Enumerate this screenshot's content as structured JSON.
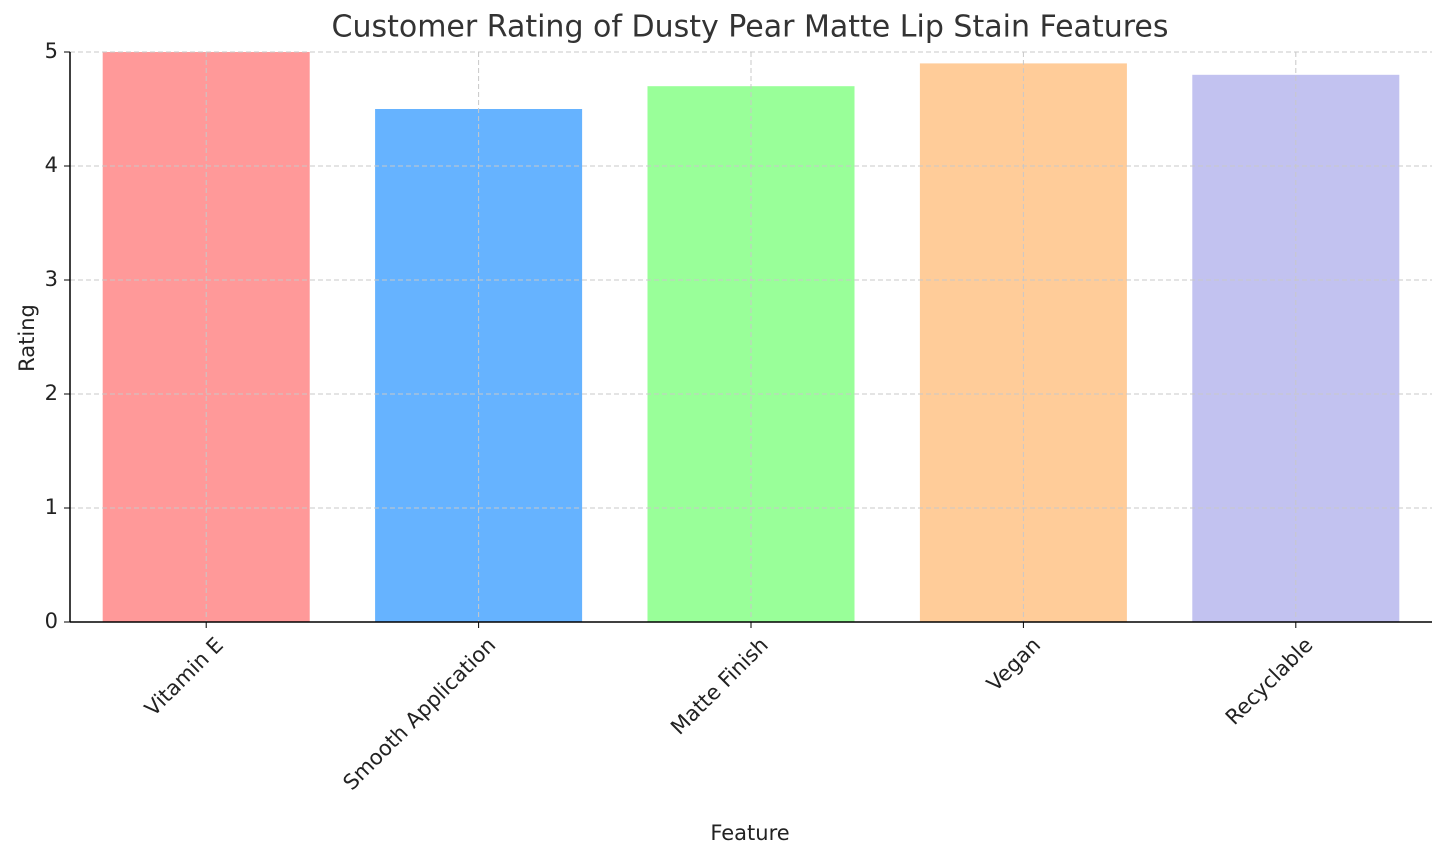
{
  "chart_data": {
    "type": "bar",
    "title": "Customer Rating of Dusty Pear Matte Lip Stain Features",
    "x_label": "Feature",
    "y_label": "Rating",
    "categories": [
      "Vitamin E",
      "Smooth Application",
      "Matte Finish",
      "Vegan",
      "Recyclable"
    ],
    "values": [
      5.0,
      4.5,
      4.7,
      4.9,
      4.8
    ],
    "colors": [
      "#ff9999",
      "#66b3ff",
      "#99ff99",
      "#ffcc99",
      "#c2c2f0"
    ],
    "ylim": [
      0,
      5
    ],
    "yticks": [
      0,
      1,
      2,
      3,
      4,
      5
    ],
    "grid": true
  }
}
